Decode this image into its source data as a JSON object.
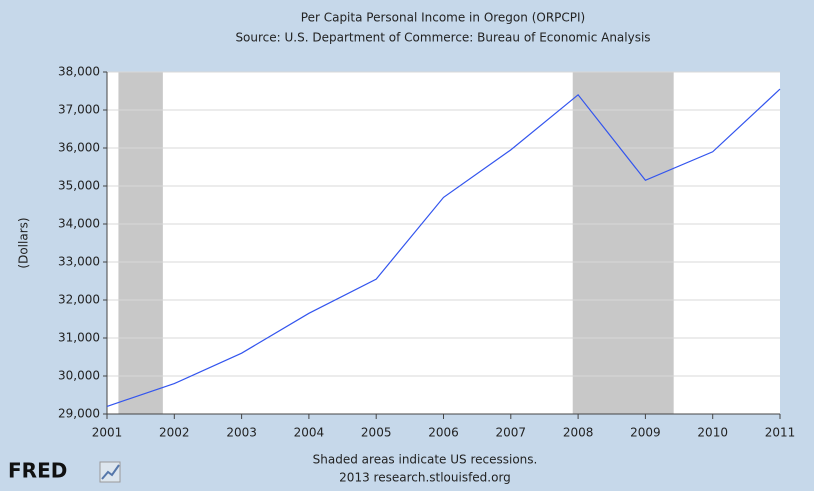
{
  "chart_data": {
    "type": "line",
    "title": "Per Capita Personal Income in Oregon (ORPCPI)",
    "subtitle": "Source: U.S. Department of Commerce: Bureau of Economic Analysis",
    "y_label": "(Dollars)",
    "note": "Shaded areas indicate US recessions.",
    "credit": "2013 research.stlouisfed.org",
    "logo": "FRED",
    "x": [
      2001,
      2002,
      2003,
      2004,
      2005,
      2006,
      2007,
      2008,
      2009,
      2010,
      2011
    ],
    "series": [
      {
        "name": "ORPCPI",
        "color": "#3355ee",
        "values": [
          29200,
          29800,
          30600,
          31650,
          32550,
          34700,
          35950,
          37400,
          35150,
          35900,
          37550
        ]
      }
    ],
    "recessions": [
      [
        2001.17,
        2001.83
      ],
      [
        2007.92,
        2009.42
      ]
    ],
    "recession_color": "#c8c8c8",
    "xlim": [
      2001,
      2011
    ],
    "xticks": [
      2001,
      2002,
      2003,
      2004,
      2005,
      2006,
      2007,
      2008,
      2009,
      2010,
      2011
    ],
    "ylim": [
      29000,
      38000
    ],
    "yticks": [
      {
        "value": 29000,
        "label": "29,000"
      },
      {
        "value": 30000,
        "label": "30,000"
      },
      {
        "value": 31000,
        "label": "31,000"
      },
      {
        "value": 32000,
        "label": "32,000"
      },
      {
        "value": 33000,
        "label": "33,000"
      },
      {
        "value": 34000,
        "label": "34,000"
      },
      {
        "value": 35000,
        "label": "35,000"
      },
      {
        "value": 36000,
        "label": "36,000"
      },
      {
        "value": 37000,
        "label": "37,000"
      },
      {
        "value": 38000,
        "label": "38,000"
      }
    ],
    "grid": true
  }
}
